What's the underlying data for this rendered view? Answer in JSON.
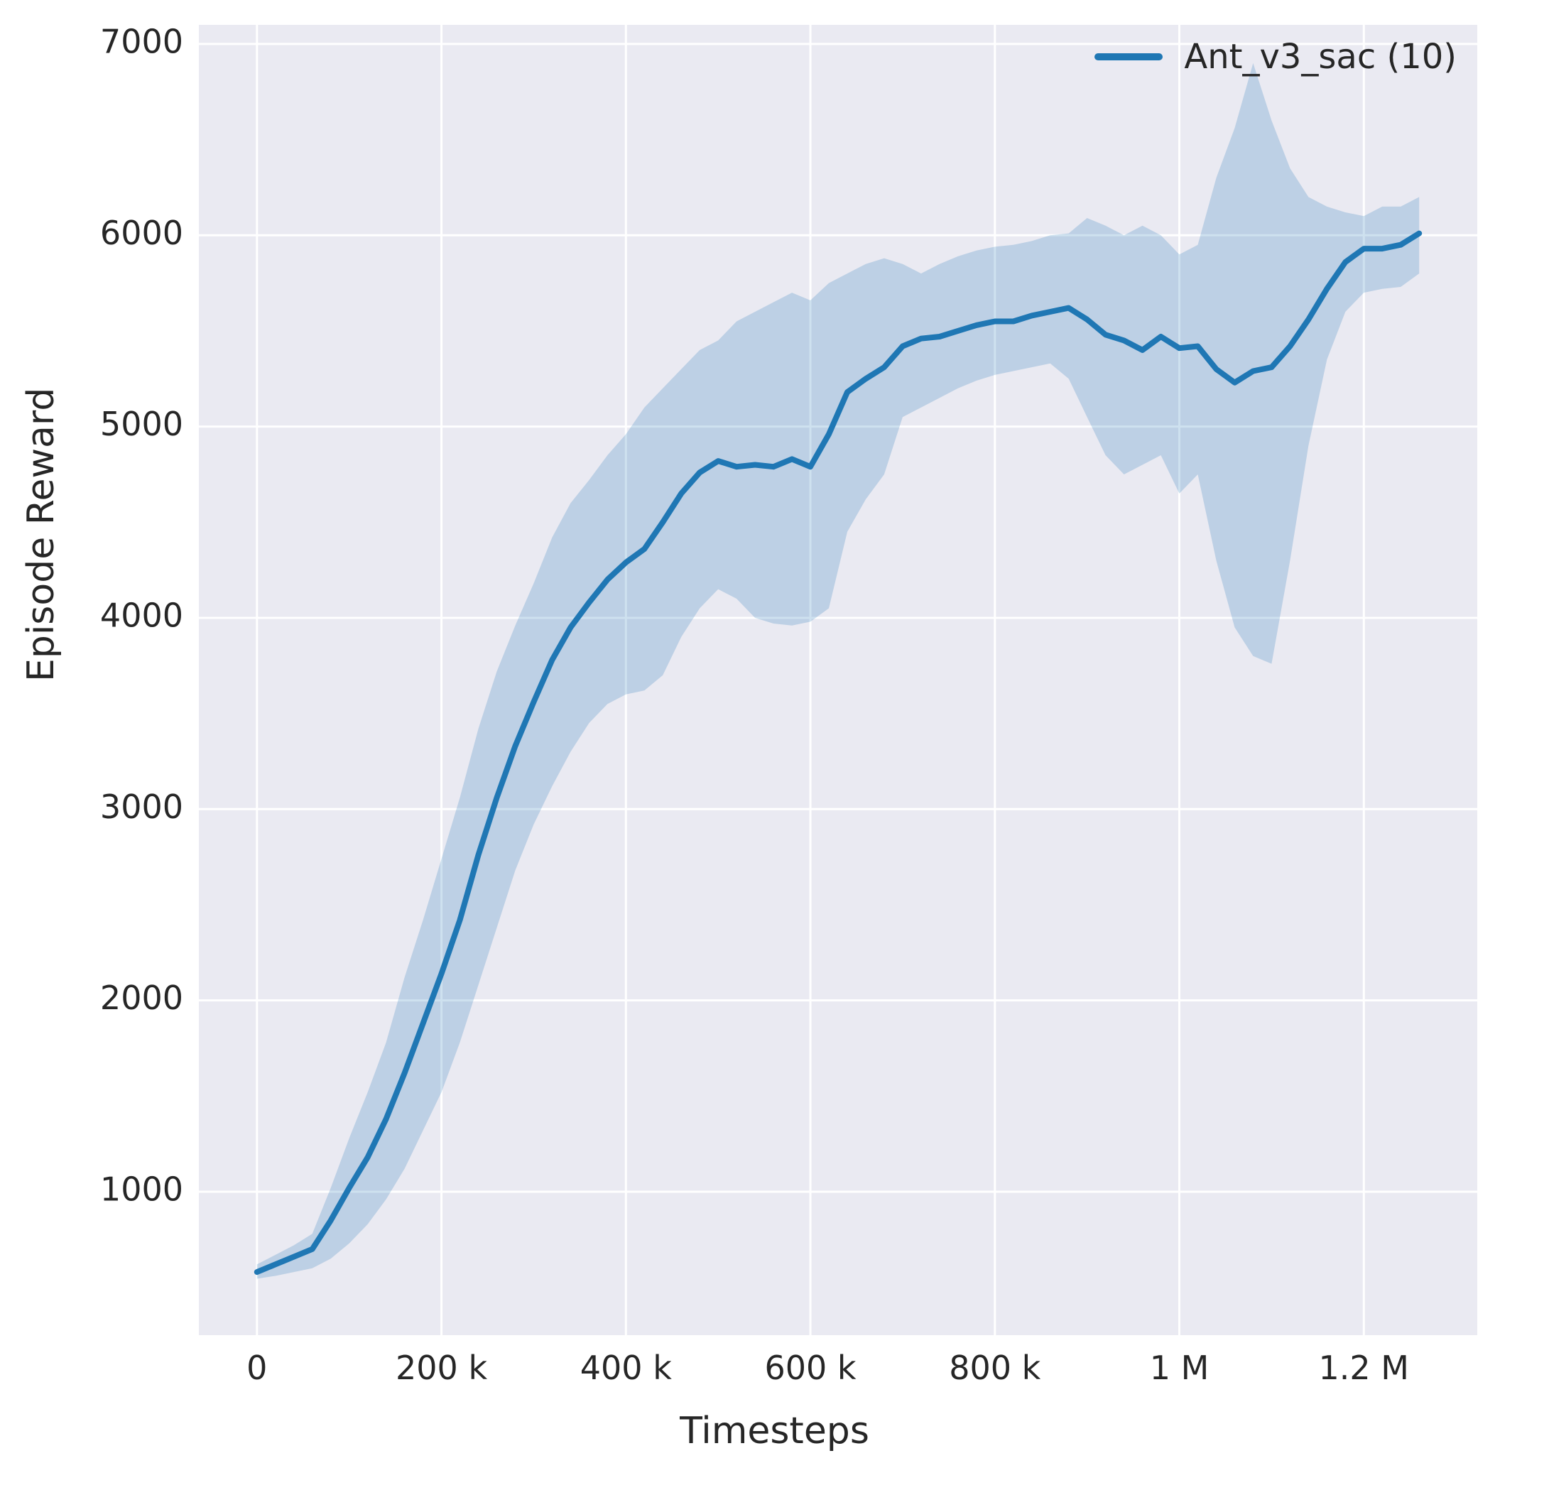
{
  "chart_data": {
    "type": "line",
    "title": "",
    "xlabel": "Timesteps",
    "ylabel": "Episode Reward",
    "grid": true,
    "legend_position": "upper right",
    "x_unit": "thousands (k) of timesteps",
    "xlim": [
      -63,
      1323
    ],
    "ylim": [
      250,
      7100
    ],
    "xticks": [
      {
        "value": 0,
        "label": "0"
      },
      {
        "value": 200,
        "label": "200 k"
      },
      {
        "value": 400,
        "label": "400 k"
      },
      {
        "value": 600,
        "label": "600 k"
      },
      {
        "value": 800,
        "label": "800 k"
      },
      {
        "value": 1000,
        "label": "1 M"
      },
      {
        "value": 1200,
        "label": "1.2 M"
      }
    ],
    "yticks": [
      {
        "value": 1000,
        "label": "1000"
      },
      {
        "value": 2000,
        "label": "2000"
      },
      {
        "value": 3000,
        "label": "3000"
      },
      {
        "value": 4000,
        "label": "4000"
      },
      {
        "value": 5000,
        "label": "5000"
      },
      {
        "value": 6000,
        "label": "6000"
      },
      {
        "value": 7000,
        "label": "7000"
      }
    ],
    "x": [
      0,
      20,
      40,
      60,
      80,
      100,
      120,
      140,
      160,
      180,
      200,
      220,
      240,
      260,
      280,
      300,
      320,
      340,
      360,
      380,
      400,
      420,
      440,
      460,
      480,
      500,
      520,
      540,
      560,
      580,
      600,
      620,
      640,
      660,
      680,
      700,
      720,
      740,
      760,
      780,
      800,
      820,
      840,
      860,
      880,
      900,
      920,
      940,
      960,
      980,
      1000,
      1020,
      1040,
      1060,
      1080,
      1100,
      1120,
      1140,
      1160,
      1180,
      1200,
      1220,
      1240,
      1260
    ],
    "series": [
      {
        "name": "Ant_v3_sac (10)",
        "mean": [
          580,
          620,
          660,
          700,
          850,
          1020,
          1180,
          1380,
          1620,
          1880,
          2140,
          2420,
          2760,
          3060,
          3330,
          3560,
          3780,
          3950,
          4080,
          4200,
          4290,
          4360,
          4500,
          4650,
          4760,
          4820,
          4790,
          4800,
          4790,
          4830,
          4790,
          4960,
          5180,
          5250,
          5310,
          5420,
          5460,
          5470,
          5500,
          5530,
          5550,
          5550,
          5580,
          5600,
          5620,
          5560,
          5480,
          5450,
          5400,
          5470,
          5410,
          5420,
          5300,
          5230,
          5290,
          5310,
          5420,
          5560,
          5720,
          5860,
          5930,
          5930,
          5950,
          6010
        ],
        "band_lower": [
          545,
          560,
          580,
          600,
          650,
          730,
          830,
          960,
          1120,
          1320,
          1520,
          1780,
          2080,
          2380,
          2680,
          2920,
          3120,
          3300,
          3450,
          3550,
          3600,
          3620,
          3700,
          3900,
          4050,
          4150,
          4100,
          4000,
          3970,
          3960,
          3980,
          4050,
          4450,
          4620,
          4750,
          5050,
          5100,
          5150,
          5200,
          5240,
          5270,
          5290,
          5310,
          5330,
          5250,
          5050,
          4850,
          4750,
          4800,
          4850,
          4650,
          4750,
          4300,
          3950,
          3800,
          3760,
          4300,
          4900,
          5350,
          5600,
          5700,
          5720,
          5730,
          5800
        ],
        "band_upper": [
          620,
          670,
          720,
          780,
          1020,
          1280,
          1520,
          1780,
          2120,
          2420,
          2740,
          3060,
          3420,
          3720,
          3960,
          4180,
          4420,
          4600,
          4720,
          4850,
          4960,
          5100,
          5200,
          5300,
          5400,
          5450,
          5550,
          5600,
          5650,
          5700,
          5660,
          5750,
          5800,
          5850,
          5880,
          5850,
          5800,
          5850,
          5890,
          5920,
          5940,
          5950,
          5970,
          6000,
          6010,
          6090,
          6050,
          6000,
          6050,
          6000,
          5900,
          5950,
          6300,
          6560,
          6900,
          6600,
          6350,
          6200,
          6150,
          6120,
          6100,
          6150,
          6150,
          6200
        ]
      }
    ],
    "colors": {
      "line": "#1f77b4",
      "band": "#1f77b4",
      "band_opacity": 0.22,
      "plot_background": "#eaeaf2",
      "grid": "#ffffff",
      "text": "#262626"
    }
  }
}
